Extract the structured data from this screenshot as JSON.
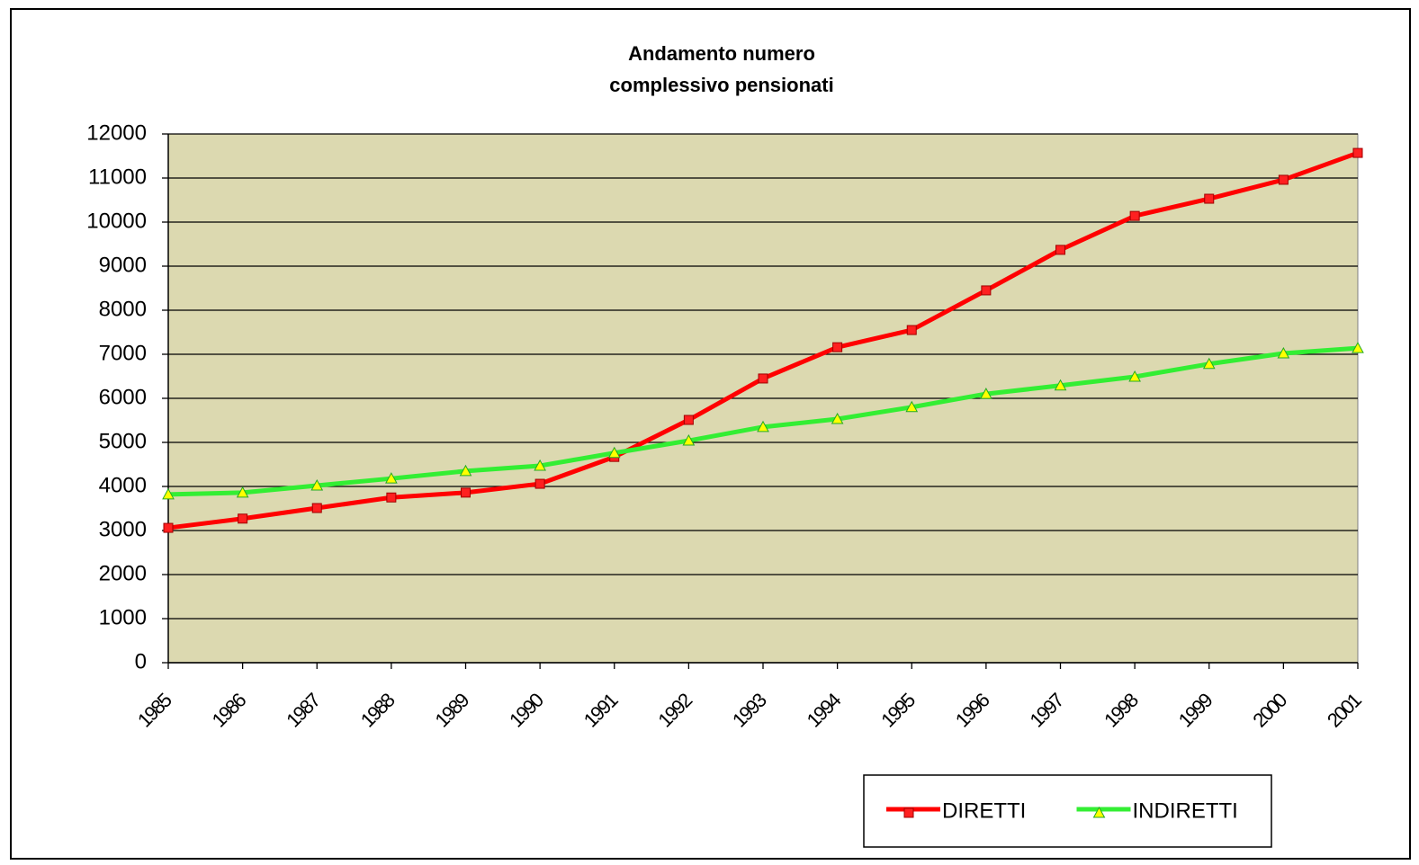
{
  "chart_data": {
    "type": "line",
    "title": [
      "Andamento numero",
      "complessivo pensionati"
    ],
    "categories": [
      "1985",
      "1986",
      "1987",
      "1988",
      "1989",
      "1990",
      "1991",
      "1992",
      "1993",
      "1994",
      "1995",
      "1996",
      "1997",
      "1998",
      "1999",
      "2000",
      "2001"
    ],
    "series": [
      {
        "name": "DIRETTI",
        "color": "#ff0000",
        "marker": "square",
        "marker_color": "#ff2020",
        "values": [
          3060,
          3270,
          3510,
          3750,
          3860,
          4060,
          4670,
          5510,
          6450,
          7160,
          7550,
          8450,
          9370,
          10140,
          10530,
          10960,
          11570
        ]
      },
      {
        "name": "INDIRETTI",
        "color": "#33ee33",
        "marker": "triangle",
        "marker_color": "#ffff00",
        "values": [
          3820,
          3860,
          4020,
          4180,
          4350,
          4470,
          4760,
          5040,
          5350,
          5530,
          5800,
          6100,
          6290,
          6490,
          6780,
          7020,
          7140
        ]
      }
    ],
    "ylim": [
      0,
      12000
    ],
    "yticks": [
      0,
      1000,
      2000,
      3000,
      4000,
      5000,
      6000,
      7000,
      8000,
      9000,
      10000,
      11000,
      12000
    ],
    "grid": true,
    "plot_background": "#dcd9b0",
    "legend": "bottom-right"
  }
}
